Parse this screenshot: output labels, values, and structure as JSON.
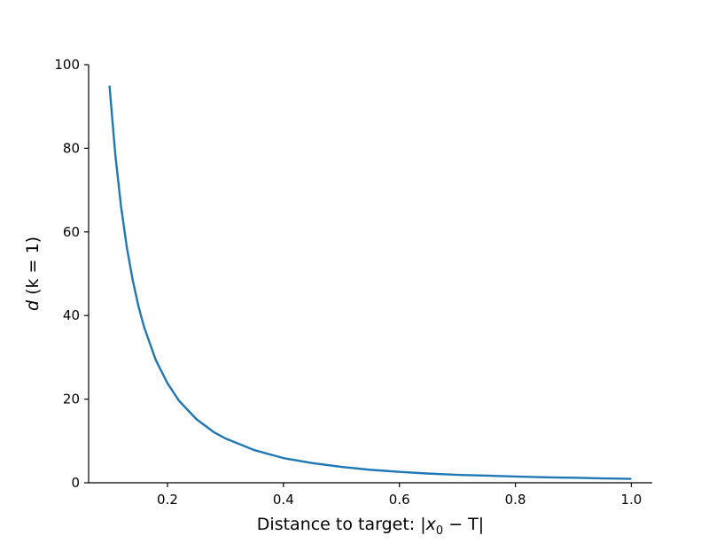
{
  "chart_data": {
    "type": "line",
    "title": "",
    "xlabel_prefix": "Distance to target: |",
    "xlabel_var": "x",
    "xlabel_sub": "0",
    "xlabel_rest": " − T|",
    "ylabel_var": "d",
    "ylabel_rest": " (k = 1)",
    "xlim": [
      0.064,
      1.036
    ],
    "ylim": [
      0,
      100
    ],
    "xticks": [
      0.2,
      0.4,
      0.6,
      0.8,
      1.0
    ],
    "xtick_labels": [
      "0.2",
      "0.4",
      "0.6",
      "0.8",
      "1.0"
    ],
    "yticks": [
      0,
      20,
      40,
      60,
      80,
      100
    ],
    "ytick_labels": [
      "0",
      "20",
      "40",
      "60",
      "80",
      "100"
    ],
    "grid": false,
    "series": [
      {
        "color": "#1f77b4",
        "x": [
          0.1,
          0.11,
          0.12,
          0.13,
          0.14,
          0.15,
          0.16,
          0.18,
          0.2,
          0.22,
          0.25,
          0.28,
          0.3,
          0.35,
          0.4,
          0.45,
          0.5,
          0.55,
          0.6,
          0.65,
          0.7,
          0.75,
          0.8,
          0.85,
          0.9,
          0.95,
          1.0
        ],
        "y": [
          95.0,
          78.5,
          66.0,
          56.2,
          48.5,
          42.2,
          37.1,
          29.3,
          23.8,
          19.6,
          15.2,
          12.1,
          10.6,
          7.8,
          5.9,
          4.7,
          3.8,
          3.1,
          2.6,
          2.2,
          1.9,
          1.7,
          1.5,
          1.3,
          1.2,
          1.05,
          0.95
        ]
      }
    ]
  }
}
